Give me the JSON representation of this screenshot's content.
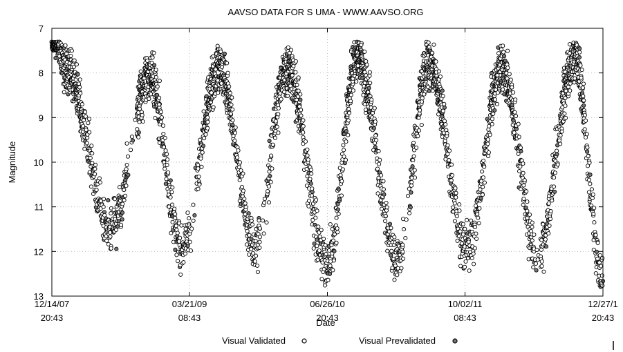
{
  "chart_data": {
    "type": "scatter",
    "title": "AAVSO DATA FOR S UMA - WWW.AAVSO.ORG",
    "xlabel": "Date",
    "ylabel": "Magnitude",
    "ylim": [
      13,
      7
    ],
    "y_inverted": true,
    "grid": true,
    "legend_position": "bottom",
    "y_ticks": [
      "7",
      "8",
      "9",
      "10",
      "11",
      "12",
      "13"
    ],
    "x_ticks": [
      {
        "date": "12/14/07",
        "time": "20:43"
      },
      {
        "date": "03/21/09",
        "time": "08:43"
      },
      {
        "date": "06/26/10",
        "time": "20:43"
      },
      {
        "date": "10/02/11",
        "time": "08:43"
      },
      {
        "date": "12/27/1",
        "time": "20:43"
      }
    ],
    "x_tick_days": [
      0,
      462,
      925,
      1387,
      1850
    ],
    "xlim_days": [
      0,
      1850
    ],
    "cycle_maxima": [
      {
        "day": 48,
        "mag": 7.9
      },
      {
        "day": 330,
        "mag": 8.1
      },
      {
        "day": 562,
        "mag": 7.9
      },
      {
        "day": 790,
        "mag": 7.9
      },
      {
        "day": 1025,
        "mag": 7.7
      },
      {
        "day": 1265,
        "mag": 7.8
      },
      {
        "day": 1510,
        "mag": 7.9
      },
      {
        "day": 1755,
        "mag": 7.7
      }
    ],
    "cycle_minima": [
      {
        "day": 195,
        "mag": 11.5
      },
      {
        "day": 435,
        "mag": 11.9
      },
      {
        "day": 680,
        "mag": 11.9
      },
      {
        "day": 925,
        "mag": 12.3
      },
      {
        "day": 1160,
        "mag": 12.2
      },
      {
        "day": 1395,
        "mag": 12.0
      },
      {
        "day": 1630,
        "mag": 12.1
      },
      {
        "day": 1850,
        "mag": 12.7
      }
    ],
    "series": [
      {
        "name": "Visual Validated",
        "marker": "circle-outline"
      },
      {
        "name": "Visual Prevalidated",
        "marker": "circle-dotted"
      }
    ]
  },
  "colors": {
    "ink": "#000000",
    "grid": "#bbbbbb",
    "background": "#ffffff"
  }
}
